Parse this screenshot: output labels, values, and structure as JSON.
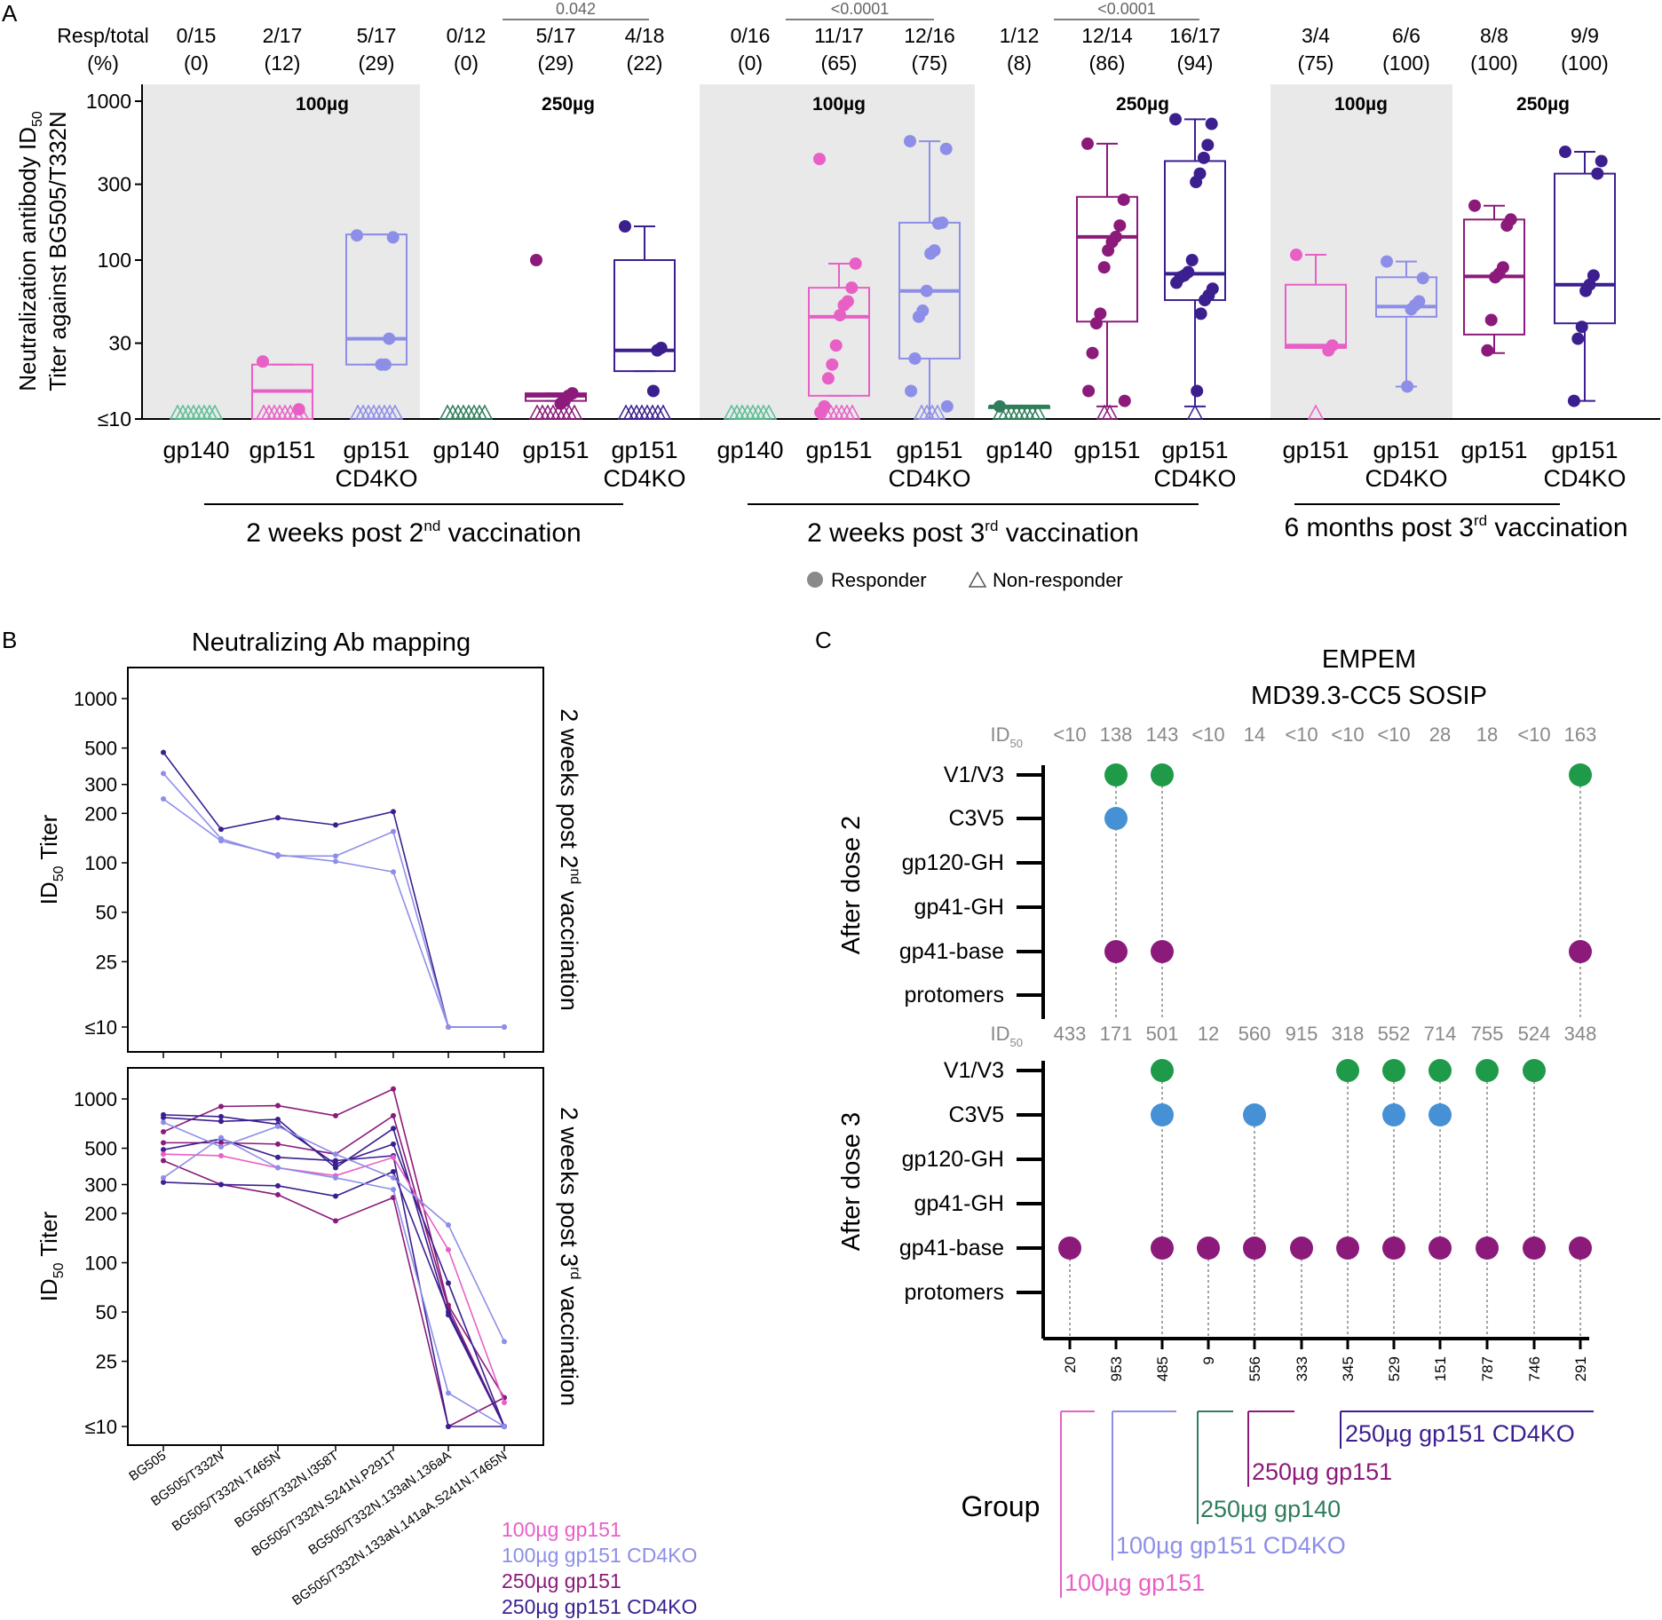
{
  "panel_labels": {
    "a": "A",
    "b": "B",
    "c": "C"
  },
  "colors": {
    "gp140_100": "#5bbf95",
    "gp140_250": "#2e7d5b",
    "gp151_100": "#e860c6",
    "cd4ko_100": "#8d8ee8",
    "gp151_250": "#8b1a7a",
    "cd4ko_250": "#3b1f8f",
    "green": "#1e9a48",
    "blue": "#4690d6",
    "purple": "#8b1a7a",
    "shade": "#e9e9e9"
  },
  "chart_data": [
    {
      "id": "A",
      "type": "box-scatter",
      "ylabel": "Neutralization antibody ID50 Titer against BG505/T332N",
      "ylabel_lines": [
        "Neutralization antibody ID",
        "50",
        "Titer against BG505/T332N"
      ],
      "yscale": "log",
      "yticks": [
        10,
        30,
        100,
        300,
        1000
      ],
      "ytick_labels": [
        "≤10",
        "30",
        "100",
        "300",
        "1000"
      ],
      "resp_header": [
        "Resp/total",
        "(%)"
      ],
      "dose_labels": [
        "100µg",
        "250µg",
        "100µg",
        "250µg",
        "100µg",
        "250µg"
      ],
      "timepoints": [
        "2 weeks post 2nd vaccination",
        "2 weeks post 3rd vaccination",
        "6 months post 3rd vaccination"
      ],
      "timepoint_parts": [
        [
          "2 weeks post 2",
          "nd",
          " vaccination"
        ],
        [
          "2 weeks post 3",
          "rd",
          " vaccination"
        ],
        [
          "6 months post 3",
          "rd",
          " vaccination"
        ]
      ],
      "comparisons": [
        {
          "groups": [
            4,
            5
          ],
          "p": "0.042"
        },
        {
          "groups": [
            7,
            8
          ],
          "p": "<0.0001"
        },
        {
          "groups": [
            10,
            11
          ],
          "p": "<0.0001"
        }
      ],
      "legend": [
        "Responder",
        "Non-responder"
      ],
      "groups": [
        {
          "label": [
            "gp140"
          ],
          "color": "gp140_100",
          "resp": "0/15",
          "pct": "(0)",
          "box": null,
          "responders": [],
          "nonresponders": 15
        },
        {
          "label": [
            "gp151"
          ],
          "color": "gp151_100",
          "resp": "2/17",
          "pct": "(12)",
          "box": [
            10,
            10,
            15,
            22,
            22
          ],
          "responders": [
            23,
            11.5
          ],
          "nonresponders": 15
        },
        {
          "label": [
            "gp151",
            "CD4KO"
          ],
          "color": "cd4ko_100",
          "resp": "5/17",
          "pct": "(29)",
          "box": [
            22,
            22,
            32,
            145,
            145
          ],
          "responders": [
            143,
            139,
            32,
            22,
            22
          ],
          "nonresponders": 12
        },
        {
          "label": [
            "gp140"
          ],
          "color": "gp140_250",
          "resp": "0/12",
          "pct": "(0)",
          "box": null,
          "responders": [],
          "nonresponders": 12
        },
        {
          "label": [
            "gp151"
          ],
          "color": "gp151_250",
          "resp": "5/17",
          "pct": "(29)",
          "box": [
            13,
            13,
            14,
            14.5,
            14.5
          ],
          "responders": [
            100,
            14.5,
            14,
            13,
            12.5
          ],
          "nonresponders": 12
        },
        {
          "label": [
            "gp151",
            "CD4KO"
          ],
          "color": "cd4ko_250",
          "resp": "4/18",
          "pct": "(22)",
          "box": [
            20,
            20,
            27,
            100,
            163
          ],
          "responders": [
            163,
            28,
            27,
            15
          ],
          "nonresponders": 14
        },
        {
          "label": [
            "gp140"
          ],
          "color": "gp140_100",
          "resp": "0/16",
          "pct": "(0)",
          "box": null,
          "responders": [],
          "nonresponders": 16
        },
        {
          "label": [
            "gp151"
          ],
          "color": "gp151_100",
          "resp": "11/17",
          "pct": "(65)",
          "box": [
            14,
            14,
            44,
            67,
            95
          ],
          "responders": [
            433,
            95,
            67,
            55,
            52,
            45,
            29,
            22,
            18,
            12,
            11
          ],
          "nonresponders": 6
        },
        {
          "label": [
            "gp151",
            "CD4KO"
          ],
          "color": "cd4ko_100",
          "resp": "12/16",
          "pct": "(75)",
          "box": [
            24,
            10,
            64,
            172,
            560
          ],
          "responders": [
            560,
            501,
            172,
            170,
            115,
            110,
            64,
            48,
            44,
            24,
            15,
            12
          ],
          "nonresponders": 4
        },
        {
          "label": [
            "gp140"
          ],
          "color": "gp140_250",
          "resp": "1/12",
          "pct": "(8)",
          "box": [
            12,
            12,
            12,
            12,
            12
          ],
          "responders": [
            12
          ],
          "nonresponders": 11
        },
        {
          "label": [
            "gp151"
          ],
          "color": "gp151_250",
          "resp": "12/14",
          "pct": "(86)",
          "box": [
            41,
            12,
            140,
            250,
            540
          ],
          "responders": [
            540,
            240,
            165,
            140,
            130,
            115,
            90,
            46,
            40,
            26,
            15,
            13
          ],
          "nonresponders": 2
        },
        {
          "label": [
            "gp151",
            "CD4KO"
          ],
          "color": "cd4ko_250",
          "resp": "16/17",
          "pct": "(94)",
          "box": [
            56,
            12,
            82,
            420,
            770
          ],
          "responders": [
            770,
            720,
            530,
            440,
            350,
            310,
            100,
            84,
            80,
            78,
            72,
            66,
            60,
            56,
            46,
            15
          ],
          "nonresponders": 1
        },
        {
          "label": [
            "gp151"
          ],
          "color": "gp151_100",
          "resp": "3/4",
          "pct": "(75)",
          "box": [
            28,
            28,
            29,
            70,
            108
          ],
          "responders": [
            108,
            29,
            27
          ],
          "nonresponders": 1
        },
        {
          "label": [
            "gp151",
            "CD4KO"
          ],
          "color": "cd4ko_100",
          "resp": "6/6",
          "pct": "(100)",
          "box": [
            44,
            16,
            51,
            78,
            98
          ],
          "responders": [
            98,
            77,
            55,
            52,
            49,
            16
          ]
        },
        {
          "label": [
            "gp151"
          ],
          "color": "gp151_250",
          "resp": "8/8",
          "pct": "(100)",
          "box": [
            34,
            26,
            79,
            180,
            220
          ],
          "responders": [
            220,
            180,
            165,
            90,
            82,
            78,
            42,
            27
          ]
        },
        {
          "label": [
            "gp151",
            "CD4KO"
          ],
          "color": "cd4ko_250",
          "resp": "9/9",
          "pct": "(100)",
          "box": [
            40,
            13,
            70,
            350,
            480
          ],
          "responders": [
            480,
            420,
            350,
            80,
            70,
            64,
            38,
            32,
            13
          ]
        }
      ]
    },
    {
      "id": "B",
      "type": "line",
      "title": "Neutralizing Ab mapping",
      "ylabel": "ID50 Titer",
      "ylabel_parts": [
        "ID",
        "50",
        " Titer"
      ],
      "yscale": "log",
      "yticks": [
        10,
        25,
        50,
        100,
        200,
        300,
        500,
        1000
      ],
      "ytick_labels": [
        "≤10",
        "25",
        "50",
        "100",
        "200",
        "300",
        "500",
        "1000"
      ],
      "categories": [
        "BG505",
        "BG505/T332N",
        "BG505/T332N.T465N",
        "BG505/T332N.I358T",
        "BG505/T332N.S241N.P291T",
        "BG505/T332N.133aN.136aA",
        "BG505/T332N.133aN.141aA.S241N.T465N"
      ],
      "facets": [
        {
          "label_parts": [
            "2 weeks post 2",
            "nd",
            " vaccination"
          ],
          "series": [
            {
              "group": "250µg gp151 CD4KO",
              "color": "cd4ko_250",
              "values": [
                470,
                160,
                188,
                170,
                205,
                10,
                10
              ]
            },
            {
              "group": "100µg gp151 CD4KO",
              "color": "cd4ko_100",
              "values": [
                350,
                140,
                110,
                110,
                155,
                10,
                10
              ]
            },
            {
              "group": "100µg gp151 CD4KO",
              "color": "cd4ko_100",
              "values": [
                245,
                136,
                112,
                102,
                88,
                10,
                10
              ]
            }
          ]
        },
        {
          "label_parts": [
            "2 weeks post 3",
            "rd",
            " vaccination"
          ],
          "series": [
            {
              "group": "250µg gp151",
              "color": "gp151_250",
              "values": [
                630,
                900,
                910,
                790,
                1150,
                55,
                15
              ]
            },
            {
              "group": "250µg gp151",
              "color": "gp151_250",
              "values": [
                420,
                300,
                260,
                180,
                250,
                10,
                15
              ]
            },
            {
              "group": "250µg gp151",
              "color": "gp151_250",
              "values": [
                540,
                540,
                530,
                460,
                790,
                53,
                10
              ]
            },
            {
              "group": "250µg gp151 CD4KO",
              "color": "cd4ko_250",
              "values": [
                800,
                780,
                700,
                400,
                530,
                75,
                10
              ]
            },
            {
              "group": "250µg gp151 CD4KO",
              "color": "cd4ko_250",
              "values": [
                770,
                730,
                750,
                380,
                660,
                48,
                10
              ]
            },
            {
              "group": "250µg gp151 CD4KO",
              "color": "cd4ko_250",
              "values": [
                490,
                570,
                440,
                420,
                450,
                10,
                10
              ]
            },
            {
              "group": "250µg gp151 CD4KO",
              "color": "cd4ko_250",
              "values": [
                310,
                300,
                295,
                255,
                360,
                50,
                10
              ]
            },
            {
              "group": "100µg gp151",
              "color": "gp151_100",
              "values": [
                460,
                450,
                380,
                340,
                440,
                120,
                14
              ]
            },
            {
              "group": "100µg gp151 CD4KO",
              "color": "cd4ko_100",
              "values": [
                720,
                510,
                680,
                460,
                330,
                170,
                33
              ]
            },
            {
              "group": "100µg gp151 CD4KO",
              "color": "cd4ko_100",
              "values": [
                330,
                580,
                380,
                330,
                280,
                16,
                10
              ]
            }
          ]
        }
      ],
      "legend": [
        {
          "label": "100µg gp151",
          "color": "gp151_100"
        },
        {
          "label": "100µg gp151 CD4KO",
          "color": "cd4ko_100"
        },
        {
          "label": "250µg gp151",
          "color": "gp151_250"
        },
        {
          "label": "250µg gp151 CD4KO",
          "color": "cd4ko_250"
        }
      ]
    },
    {
      "id": "C",
      "type": "dot-matrix",
      "title": [
        "EMPEM",
        "MD39.3-CC5 SOSIP"
      ],
      "id50_label": [
        "ID",
        "50"
      ],
      "epitopes": [
        "V1/V3",
        "C3V5",
        "gp120-GH",
        "gp41-GH",
        "gp41-base",
        "protomers"
      ],
      "animals": [
        "20",
        "953",
        "485",
        "9",
        "556",
        "333",
        "345",
        "529",
        "151",
        "787",
        "746",
        "291"
      ],
      "group_axis_label": "Group",
      "groups": [
        {
          "label": "100µg gp151",
          "color": "gp151_100",
          "animals": [
            "20"
          ]
        },
        {
          "label": "100µg gp151 CD4KO",
          "color": "cd4ko_100",
          "animals": [
            "953",
            "485"
          ]
        },
        {
          "label": "250µg gp140",
          "color": "gp140_250",
          "animals": [
            "9"
          ]
        },
        {
          "label": "250µg gp151",
          "color": "gp151_250",
          "animals": [
            "556",
            "333"
          ]
        },
        {
          "label": "250µg gp151 CD4KO",
          "color": "cd4ko_250",
          "animals": [
            "345",
            "529",
            "151",
            "787",
            "746",
            "291"
          ]
        }
      ],
      "facets": [
        {
          "label": "After dose 2",
          "id50": [
            "<10",
            "138",
            "143",
            "<10",
            "14",
            "<10",
            "<10",
            "<10",
            "28",
            "18",
            "<10",
            "163"
          ],
          "dots": [
            {
              "animal": "953",
              "epitopes": [
                "V1/V3",
                "C3V5",
                "gp41-base"
              ]
            },
            {
              "animal": "485",
              "epitopes": [
                "V1/V3",
                "gp41-base"
              ]
            },
            {
              "animal": "291",
              "epitopes": [
                "V1/V3",
                "gp41-base"
              ]
            }
          ]
        },
        {
          "label": "After dose 3",
          "id50": [
            "433",
            "171",
            "501",
            "12",
            "560",
            "915",
            "318",
            "552",
            "714",
            "755",
            "524",
            "348"
          ],
          "dots": [
            {
              "animal": "20",
              "epitopes": [
                "gp41-base"
              ]
            },
            {
              "animal": "485",
              "epitopes": [
                "V1/V3",
                "C3V5",
                "gp41-base"
              ]
            },
            {
              "animal": "9",
              "epitopes": [
                "gp41-base"
              ]
            },
            {
              "animal": "556",
              "epitopes": [
                "C3V5",
                "gp41-base"
              ]
            },
            {
              "animal": "333",
              "epitopes": [
                "gp41-base"
              ]
            },
            {
              "animal": "345",
              "epitopes": [
                "V1/V3",
                "gp41-base"
              ]
            },
            {
              "animal": "529",
              "epitopes": [
                "V1/V3",
                "C3V5",
                "gp41-base"
              ]
            },
            {
              "animal": "151",
              "epitopes": [
                "V1/V3",
                "C3V5",
                "gp41-base"
              ]
            },
            {
              "animal": "787",
              "epitopes": [
                "V1/V3",
                "gp41-base"
              ]
            },
            {
              "animal": "746",
              "epitopes": [
                "V1/V3",
                "gp41-base"
              ]
            },
            {
              "animal": "291",
              "epitopes": [
                "gp41-base"
              ]
            }
          ]
        }
      ],
      "epitope_colors": {
        "V1/V3": "green",
        "C3V5": "blue",
        "gp41-base": "purple"
      }
    }
  ]
}
